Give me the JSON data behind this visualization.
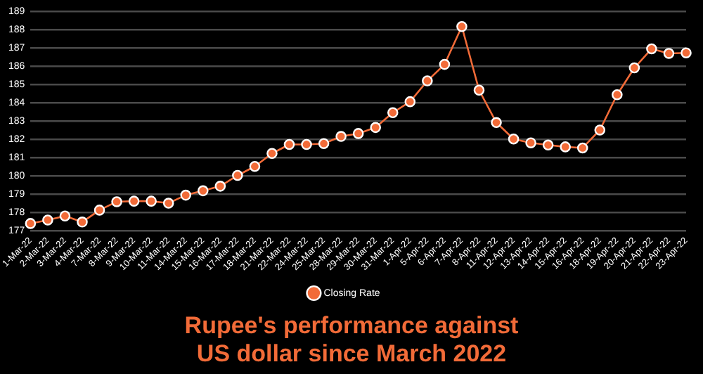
{
  "chart_data": {
    "type": "line",
    "title": "Rupee's performance against US dollar since March 2022",
    "categories": [
      "1-Mar-22",
      "2-Mar-22",
      "3-Mar-22",
      "4-Mar-22",
      "7-Mar-22",
      "8-Mar-22",
      "9-Mar-22",
      "10-Mar-22",
      "11-Mar-22",
      "14-Mar-22",
      "15-Mar-22",
      "16-Mar-22",
      "17-Mar-22",
      "18-Mar-22",
      "21-Mar-22",
      "22-Mar-22",
      "24-Mar-22",
      "25-Mar-22",
      "28-Mar-22",
      "29-Mar-22",
      "30-Mar-22",
      "31-Mar-22",
      "1-Apr-22",
      "5-Apr-22",
      "6-Apr-22",
      "7-Apr-22",
      "8-Apr-22",
      "11-Apr-22",
      "12-Apr-22",
      "13-Apr-22",
      "14-Apr-22",
      "15-Apr-22",
      "16-Apr-22",
      "18-Apr-22",
      "19-Apr-22",
      "20-Apr-22",
      "21-Apr-22",
      "22-Apr-22",
      "23-Apr-22"
    ],
    "series": [
      {
        "name": "Closing Rate",
        "color": "#f26b38",
        "values": [
          177.41,
          177.6,
          177.82,
          177.49,
          178.14,
          178.6,
          178.63,
          178.63,
          178.52,
          178.96,
          179.2,
          179.45,
          180.04,
          180.53,
          181.24,
          181.73,
          181.73,
          181.78,
          182.17,
          182.33,
          182.66,
          183.47,
          184.07,
          185.21,
          186.11,
          188.18,
          184.7,
          182.93,
          182.03,
          181.82,
          181.7,
          181.6,
          181.54,
          182.52,
          184.45,
          185.92,
          186.96,
          186.71,
          186.74
        ]
      }
    ],
    "ylim": [
      177,
      189
    ],
    "yticks": [
      177,
      178,
      179,
      180,
      181,
      182,
      183,
      184,
      185,
      186,
      187,
      188,
      189
    ],
    "grid": "y",
    "legend": "bottom",
    "marker": "circle",
    "line_style": "solid"
  }
}
